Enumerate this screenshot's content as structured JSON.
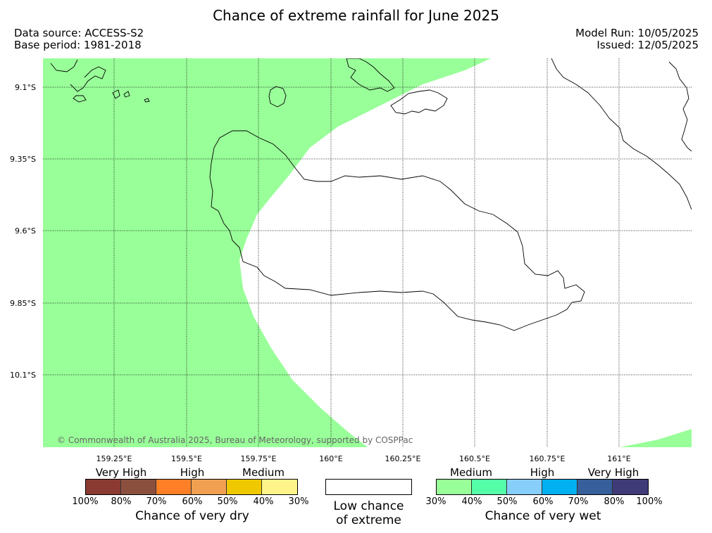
{
  "header": {
    "title": "Chance of extreme rainfall for June 2025",
    "data_source": "Data source: ACCESS-S2",
    "base_period": "Base period: 1981-2018",
    "model_run": "Model Run: 10/05/2025",
    "issued": "Issued: 12/05/2025"
  },
  "map": {
    "copyright": "© Commonwealth of Australia 2025, Bureau of Meteorology, supported by COSPPac",
    "lat_labels": [
      "9.1°S",
      "9.35°S",
      "9.6°S",
      "9.85°S",
      "10.1°S"
    ],
    "lon_labels": [
      "159.25°E",
      "159.5°E",
      "159.75°E",
      "160°E",
      "160.25°E",
      "160.5°E",
      "160.75°E",
      "161°E"
    ],
    "shading_color": "#99ff99",
    "shading_category": "Medium (30%-40%) chance of very wet"
  },
  "legend": {
    "dry": {
      "categories": [
        "Very High",
        "High",
        "Medium"
      ],
      "colors": [
        "#8b3a32",
        "#8b4f3e",
        "#ff7f27",
        "#f0a050",
        "#f0c800",
        "#fff48a"
      ],
      "ticks": [
        "100%",
        "80%",
        "70%",
        "60%",
        "50%",
        "40%",
        "30%"
      ],
      "caption": "Chance of very dry"
    },
    "low": {
      "caption_line1": "Low chance",
      "caption_line2": "of extreme",
      "color": "#ffffff"
    },
    "wet": {
      "categories": [
        "Medium",
        "High",
        "Very High"
      ],
      "colors": [
        "#99ff99",
        "#55ffaa",
        "#87cefa",
        "#00b0f0",
        "#365f9c",
        "#3f3a78"
      ],
      "ticks": [
        "30%",
        "40%",
        "50%",
        "60%",
        "70%",
        "80%",
        "100%"
      ],
      "caption": "Chance of very wet"
    }
  }
}
